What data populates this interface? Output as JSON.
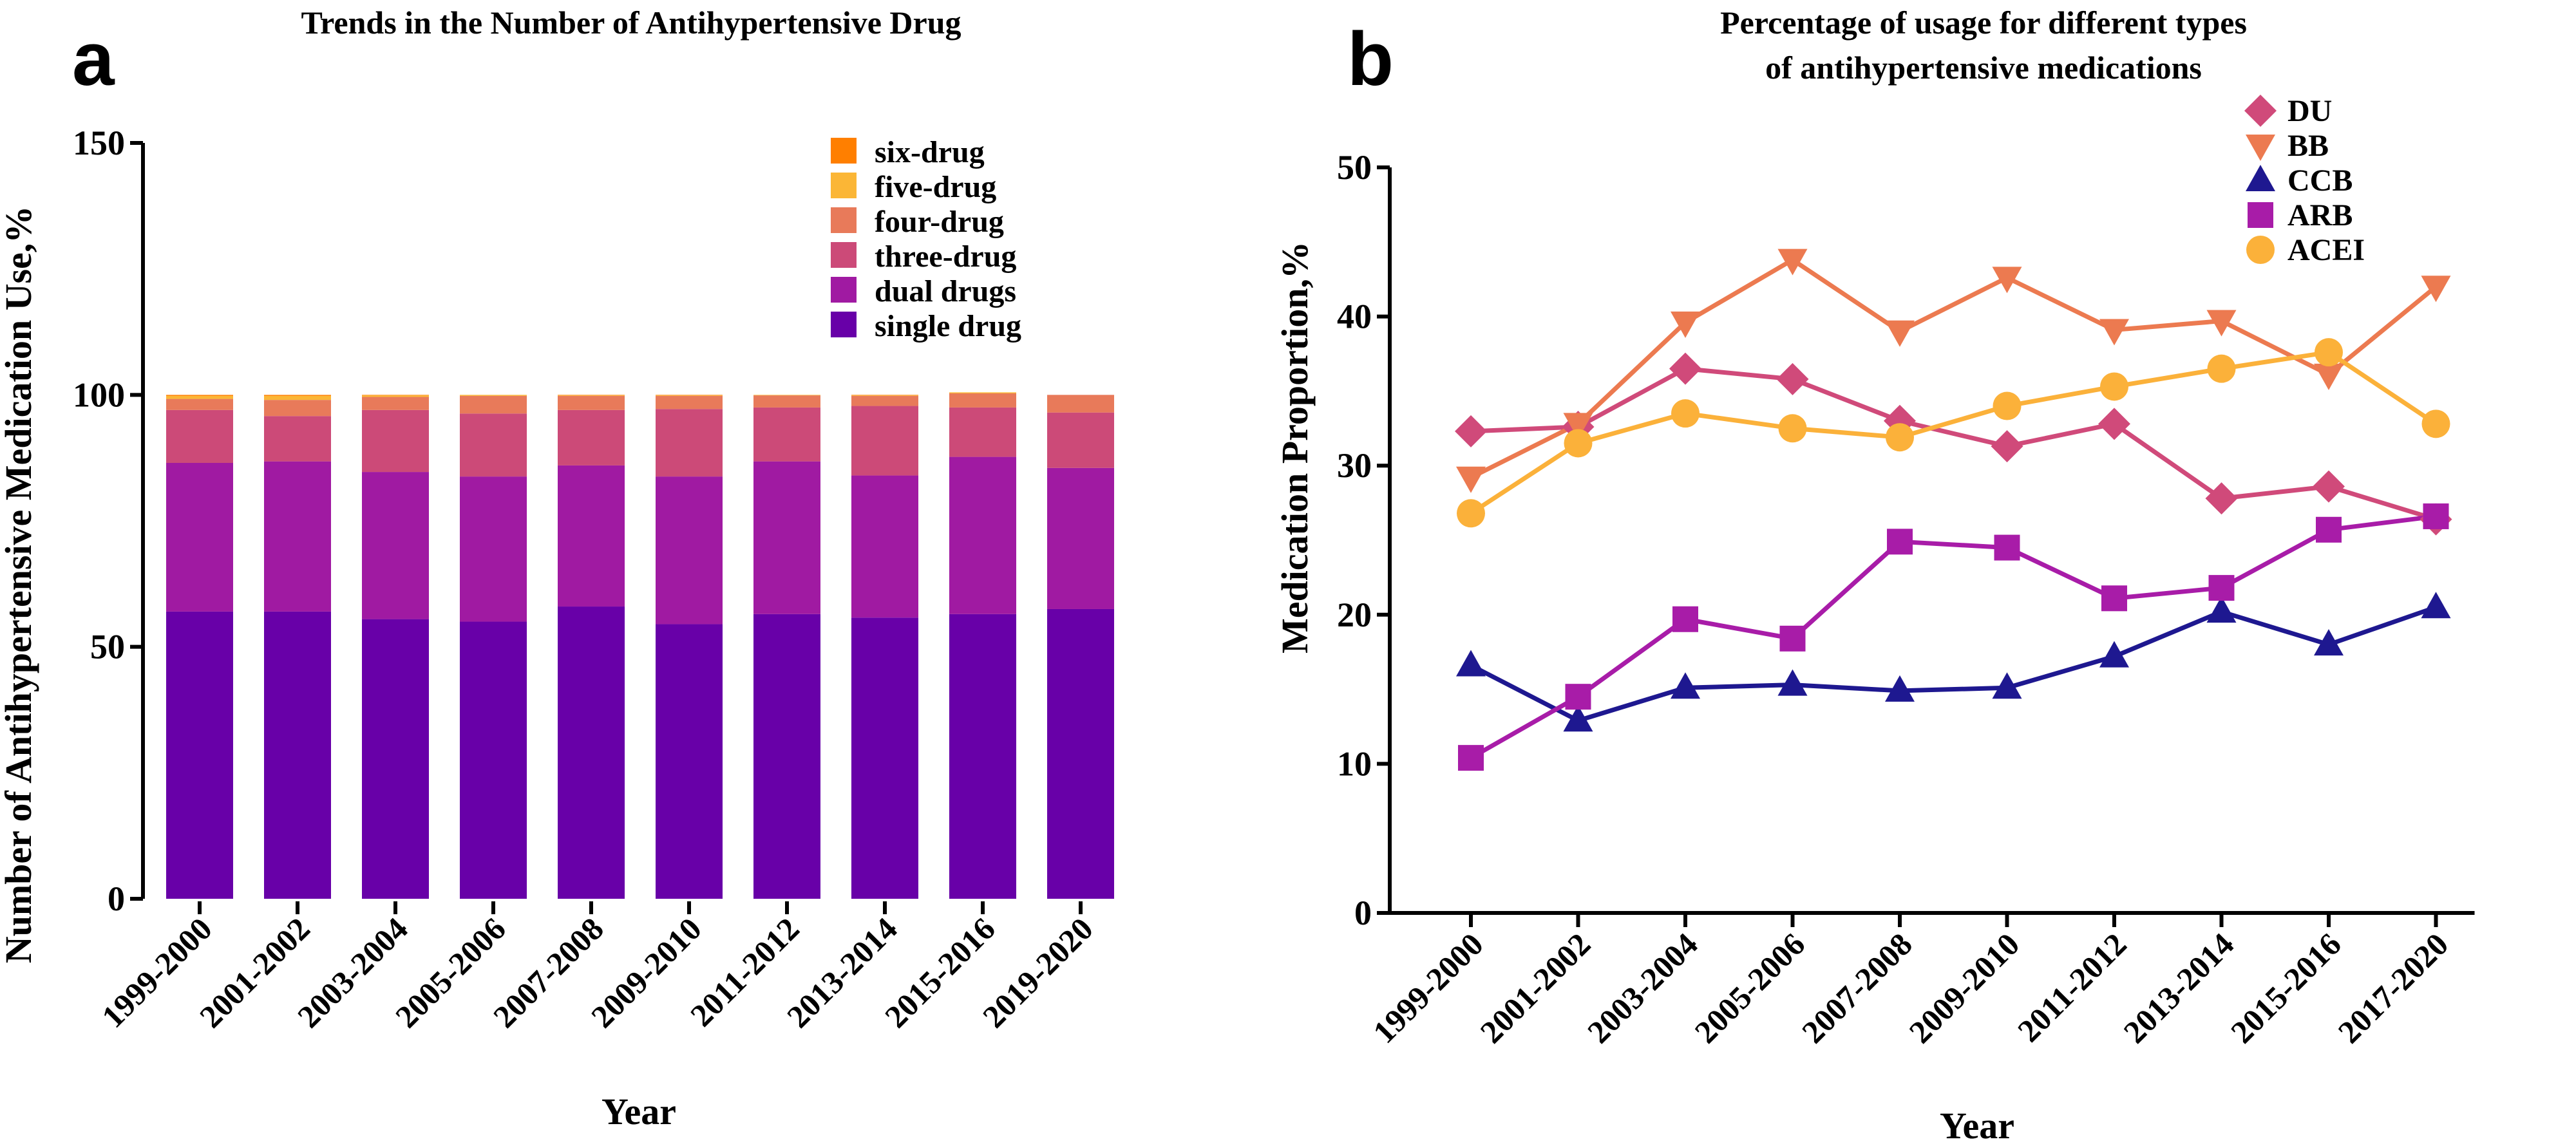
{
  "panels": {
    "a": {
      "letter": "a",
      "chart_data": {
        "type": "bar",
        "stacked": true,
        "title": "Trends in the Number of Antihypertensive Drug",
        "xlabel": "Year",
        "ylabel": "Number of Antihypertensive Medication Use,%",
        "ylim": [
          0,
          150
        ],
        "yticks": [
          0,
          50,
          100,
          150
        ],
        "categories": [
          "1999-2000",
          "2001-2002",
          "2003-2004",
          "2005-2006",
          "2007-2008",
          "2009-2010",
          "2011-2012",
          "2013-2014",
          "2015-2016",
          "2019-2020"
        ],
        "legend_position": "top-right",
        "series": [
          {
            "name": "single drug",
            "color": "#6800a8",
            "values": [
              57,
              57,
              55.5,
              55,
              58,
              54.5,
              56.5,
              55.8,
              56.5,
              57.5
            ]
          },
          {
            "name": "dual drugs",
            "color": "#a01aa2",
            "values": [
              29.5,
              29.8,
              29.2,
              28.8,
              28,
              29.3,
              30.3,
              28.2,
              31.2,
              28
            ]
          },
          {
            "name": "three-drug",
            "color": "#cc4a78",
            "values": [
              10.5,
              9,
              12.3,
              12.5,
              11,
              13.4,
              10.7,
              13.8,
              9.8,
              11
            ]
          },
          {
            "name": "four-drug",
            "color": "#e87a5a",
            "values": [
              2.2,
              3.2,
              2.6,
              3.5,
              2.8,
              2.6,
              2.4,
              2,
              2.8,
              3.5
            ]
          },
          {
            "name": "five-drug",
            "color": "#fbb636",
            "values": [
              0.6,
              0.8,
              0.3,
              0.2,
              0.1,
              0.1,
              0.1,
              0.1,
              0.2,
              0
            ]
          },
          {
            "name": "six-drug",
            "color": "#ff7f00",
            "values": [
              0.2,
              0.2,
              0.1,
              0,
              0.1,
              0.1,
              0,
              0.1,
              0,
              0
            ]
          }
        ]
      }
    },
    "b": {
      "letter": "b",
      "chart_data": {
        "type": "line",
        "title": "Percentage of usage for different types",
        "title_line2": "of antihypertensive medications",
        "xlabel": "Year",
        "ylabel": "Medication Proportion,%",
        "ylim": [
          0,
          50
        ],
        "yticks": [
          0,
          10,
          20,
          30,
          40,
          50
        ],
        "categories": [
          "1999-2000",
          "2001-2002",
          "2003-2004",
          "2005-2006",
          "2007-2008",
          "2009-2010",
          "2011-2012",
          "2013-2014",
          "2015-2016",
          "2017-2020"
        ],
        "legend_position": "top-right",
        "series": [
          {
            "name": "DU",
            "marker": "diamond",
            "color": "#d04a7a",
            "values": [
              32.3,
              32.6,
              36.5,
              35.8,
              33,
              31.3,
              32.8,
              27.8,
              28.6,
              26.4
            ]
          },
          {
            "name": "BB",
            "marker": "triangle-down",
            "color": "#ec7a50",
            "values": [
              29.2,
              32.8,
              39.6,
              43.8,
              39,
              42.6,
              39.1,
              39.7,
              36.1,
              42
            ]
          },
          {
            "name": "CCB",
            "marker": "triangle-up",
            "color": "#1e1890",
            "values": [
              16.6,
              12.9,
              15.1,
              15.3,
              14.9,
              15.1,
              17.2,
              20.2,
              18,
              20.5
            ]
          },
          {
            "name": "ARB",
            "marker": "square",
            "color": "#a81ca8",
            "values": [
              10.4,
              14.5,
              19.7,
              18.4,
              24.9,
              24.5,
              21.1,
              21.8,
              25.7,
              26.6
            ]
          },
          {
            "name": "ACEI",
            "marker": "circle",
            "color": "#fbb13a",
            "values": [
              26.8,
              31.5,
              33.5,
              32.5,
              31.9,
              34,
              35.3,
              36.5,
              37.6,
              32.8
            ]
          }
        ]
      }
    }
  }
}
